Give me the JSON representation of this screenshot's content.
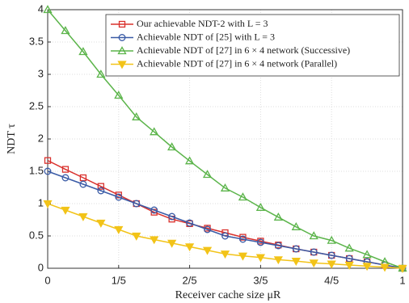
{
  "chart_data": {
    "type": "line",
    "xlabel": "Receiver cache size μR",
    "ylabel": "NDT τ",
    "x": [
      0,
      0.05,
      0.1,
      0.15,
      0.2,
      0.25,
      0.3,
      0.35,
      0.4,
      0.45,
      0.5,
      0.55,
      0.6,
      0.65,
      0.7,
      0.75,
      0.8,
      0.85,
      0.9,
      0.95,
      1
    ],
    "xlim": [
      0,
      1
    ],
    "xticks": [
      0,
      {
        "value": 0.2,
        "label": "1/5"
      },
      {
        "value": 0.4,
        "label": "2/5"
      },
      {
        "value": 0.6,
        "label": "3/5"
      },
      {
        "value": 0.8,
        "label": "4/5"
      },
      1
    ],
    "ylim": [
      0,
      4
    ],
    "yticks": [
      0,
      0.5,
      1,
      1.5,
      2,
      2.5,
      3,
      3.5,
      4
    ],
    "grid": true,
    "legend": "upper right",
    "series": [
      {
        "name": "Our achievable NDT-2 with L = 3",
        "color": "#d9302c",
        "marker": "square",
        "values": [
          1.667,
          1.53,
          1.4,
          1.267,
          1.133,
          1.0,
          0.867,
          0.76,
          0.69,
          0.62,
          0.55,
          0.48,
          0.42,
          0.36,
          0.3,
          0.25,
          0.2,
          0.15,
          0.1,
          0.05,
          0
        ]
      },
      {
        "name": "Achievable NDT of [25] with L = 3",
        "color": "#3a5ba6",
        "marker": "circle",
        "values": [
          1.5,
          1.4,
          1.3,
          1.2,
          1.1,
          1.0,
          0.9,
          0.8,
          0.7,
          0.6,
          0.5,
          0.45,
          0.4,
          0.35,
          0.3,
          0.25,
          0.2,
          0.15,
          0.1,
          0.05,
          0
        ]
      },
      {
        "name": "Achievable NDT of [27] in 6 × 4 network (Successive)",
        "color": "#5bb44a",
        "marker": "triangle",
        "values": [
          4.0,
          3.675,
          3.35,
          3.0,
          2.675,
          2.34,
          2.11,
          1.875,
          1.66,
          1.45,
          1.24,
          1.1,
          0.94,
          0.79,
          0.64,
          0.5,
          0.43,
          0.31,
          0.21,
          0.1,
          0
        ]
      },
      {
        "name": "Achievable NDT of [27] in 6 × 4 network (Parallel)",
        "color": "#f2c318",
        "marker": "triangle-down",
        "values": [
          1.0,
          0.9,
          0.8,
          0.7,
          0.6,
          0.5,
          0.444,
          0.389,
          0.333,
          0.278,
          0.222,
          0.19,
          0.167,
          0.133,
          0.111,
          0.083,
          0.067,
          0.05,
          0.033,
          0.017,
          0
        ]
      }
    ]
  }
}
